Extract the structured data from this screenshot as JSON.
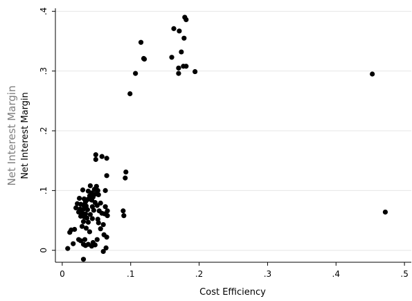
{
  "chart_data": {
    "type": "scatter",
    "xlabel": "Cost Efficiency",
    "ylabel": "Net Interest Margin",
    "ylabel_outer": "Net Interest Margin",
    "xlim": [
      -0.01,
      0.51
    ],
    "ylim": [
      -0.02,
      0.405
    ],
    "xticks": [
      0,
      0.1,
      0.2,
      0.3,
      0.4,
      0.5
    ],
    "xtick_labels": [
      "0",
      ".1",
      ".2",
      ".3",
      ".4",
      ".5"
    ],
    "yticks": [
      0,
      0.1,
      0.2,
      0.3,
      0.4
    ],
    "ytick_labels": [
      "0",
      ".1",
      ".2",
      ".3",
      ".4"
    ],
    "grid": "horizontal",
    "marker_color": "#000000",
    "series": [
      {
        "points": [
          [
            0.179,
            0.39
          ],
          [
            0.181,
            0.386
          ],
          [
            0.163,
            0.371
          ],
          [
            0.171,
            0.367
          ],
          [
            0.178,
            0.355
          ],
          [
            0.115,
            0.348
          ],
          [
            0.174,
            0.332
          ],
          [
            0.16,
            0.323
          ],
          [
            0.119,
            0.321
          ],
          [
            0.12,
            0.32
          ],
          [
            0.177,
            0.308
          ],
          [
            0.181,
            0.308
          ],
          [
            0.17,
            0.305
          ],
          [
            0.107,
            0.296
          ],
          [
            0.17,
            0.296
          ],
          [
            0.194,
            0.299
          ],
          [
            0.099,
            0.262
          ],
          [
            0.453,
            0.295
          ],
          [
            0.472,
            0.064
          ],
          [
            0.049,
            0.16
          ],
          [
            0.058,
            0.157
          ],
          [
            0.065,
            0.154
          ],
          [
            0.049,
            0.152
          ],
          [
            0.093,
            0.131
          ],
          [
            0.065,
            0.125
          ],
          [
            0.092,
            0.121
          ],
          [
            0.041,
            0.108
          ],
          [
            0.05,
            0.107
          ],
          [
            0.047,
            0.102
          ],
          [
            0.052,
            0.1
          ],
          [
            0.063,
            0.1
          ],
          [
            0.03,
            0.101
          ],
          [
            0.038,
            0.099
          ],
          [
            0.043,
            0.096
          ],
          [
            0.048,
            0.094
          ],
          [
            0.053,
            0.093
          ],
          [
            0.04,
            0.091
          ],
          [
            0.045,
            0.089
          ],
          [
            0.025,
            0.087
          ],
          [
            0.032,
            0.086
          ],
          [
            0.037,
            0.085
          ],
          [
            0.043,
            0.084
          ],
          [
            0.034,
            0.081
          ],
          [
            0.048,
            0.08
          ],
          [
            0.056,
            0.079
          ],
          [
            0.022,
            0.078
          ],
          [
            0.027,
            0.077
          ],
          [
            0.031,
            0.076
          ],
          [
            0.035,
            0.074
          ],
          [
            0.044,
            0.073
          ],
          [
            0.051,
            0.075
          ],
          [
            0.063,
            0.073
          ],
          [
            0.02,
            0.071
          ],
          [
            0.026,
            0.069
          ],
          [
            0.031,
            0.069
          ],
          [
            0.037,
            0.068
          ],
          [
            0.046,
            0.067
          ],
          [
            0.054,
            0.066
          ],
          [
            0.066,
            0.066
          ],
          [
            0.089,
            0.066
          ],
          [
            0.024,
            0.064
          ],
          [
            0.029,
            0.062
          ],
          [
            0.034,
            0.061
          ],
          [
            0.041,
            0.06
          ],
          [
            0.058,
            0.062
          ],
          [
            0.062,
            0.061
          ],
          [
            0.066,
            0.058
          ],
          [
            0.09,
            0.058
          ],
          [
            0.027,
            0.057
          ],
          [
            0.032,
            0.056
          ],
          [
            0.036,
            0.054
          ],
          [
            0.044,
            0.053
          ],
          [
            0.052,
            0.052
          ],
          [
            0.031,
            0.048
          ],
          [
            0.038,
            0.047
          ],
          [
            0.053,
            0.046
          ],
          [
            0.06,
            0.043
          ],
          [
            0.029,
            0.04
          ],
          [
            0.035,
            0.037
          ],
          [
            0.056,
            0.036
          ],
          [
            0.018,
            0.035
          ],
          [
            0.013,
            0.034
          ],
          [
            0.04,
            0.031
          ],
          [
            0.011,
            0.03
          ],
          [
            0.061,
            0.026
          ],
          [
            0.065,
            0.022
          ],
          [
            0.024,
            0.018
          ],
          [
            0.033,
            0.018
          ],
          [
            0.051,
            0.018
          ],
          [
            0.027,
            0.016
          ],
          [
            0.045,
            0.013
          ],
          [
            0.016,
            0.011
          ],
          [
            0.031,
            0.01
          ],
          [
            0.038,
            0.01
          ],
          [
            0.048,
            0.009
          ],
          [
            0.034,
            0.008
          ],
          [
            0.043,
            0.007
          ],
          [
            0.064,
            0.004
          ],
          [
            0.008,
            0.003
          ],
          [
            0.06,
            -0.002
          ],
          [
            0.031,
            -0.015
          ]
        ]
      }
    ]
  }
}
